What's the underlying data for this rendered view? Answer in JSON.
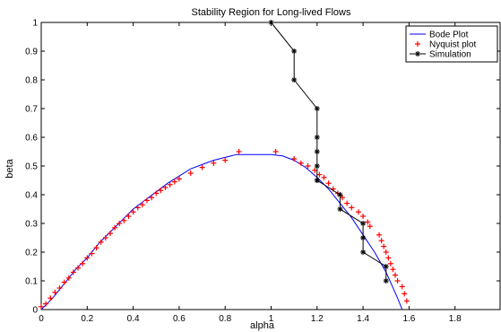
{
  "chart_data": {
    "type": "line",
    "title": "Stability Region for Long-lived Flows",
    "xlabel": "alpha",
    "ylabel": "beta",
    "xlim": [
      0,
      2
    ],
    "ylim": [
      0,
      1
    ],
    "xticks": [
      "0",
      "0.2",
      "0.4",
      "0.6",
      "0.8",
      "1",
      "1.2",
      "1.4",
      "1.6",
      "1.8"
    ],
    "yticks": [
      "0",
      "0.1",
      "0.2",
      "0.3",
      "0.4",
      "0.5",
      "0.6",
      "0.7",
      "0.8",
      "0.9",
      "1"
    ],
    "grid": false,
    "legend_position": "top-right",
    "colors": {
      "bode": "#0000ff",
      "nyquist": "#ff0000",
      "simulation": "#000000"
    },
    "series": [
      {
        "name": "Bode Plot",
        "style": "line",
        "x": [
          0,
          0.05,
          0.1,
          0.15,
          0.2,
          0.25,
          0.3,
          0.35,
          0.4,
          0.45,
          0.5,
          0.55,
          0.6,
          0.65,
          0.7,
          0.75,
          0.8,
          0.85,
          0.9,
          0.95,
          1.0,
          1.05,
          1.1,
          1.15,
          1.2,
          1.25,
          1.3,
          1.35,
          1.4,
          1.45,
          1.5,
          1.55,
          1.57
        ],
        "y": [
          0,
          0.04,
          0.09,
          0.14,
          0.18,
          0.23,
          0.27,
          0.31,
          0.35,
          0.38,
          0.41,
          0.44,
          0.465,
          0.49,
          0.505,
          0.52,
          0.53,
          0.54,
          0.54,
          0.54,
          0.54,
          0.535,
          0.52,
          0.495,
          0.46,
          0.42,
          0.37,
          0.32,
          0.26,
          0.2,
          0.13,
          0.04,
          0.0
        ]
      },
      {
        "name": "Nyquist plot",
        "style": "markers",
        "marker": "+",
        "x": [
          0.0,
          0.02,
          0.04,
          0.06,
          0.08,
          0.1,
          0.12,
          0.14,
          0.16,
          0.18,
          0.2,
          0.22,
          0.24,
          0.26,
          0.28,
          0.3,
          0.32,
          0.34,
          0.36,
          0.38,
          0.4,
          0.42,
          0.44,
          0.46,
          0.48,
          0.5,
          0.52,
          0.54,
          0.56,
          0.58,
          0.6,
          0.65,
          0.7,
          0.75,
          0.8,
          0.86,
          1.02,
          1.1,
          1.13,
          1.16,
          1.19,
          1.21,
          1.23,
          1.25,
          1.27,
          1.29,
          1.31,
          1.33,
          1.35,
          1.38,
          1.4,
          1.42,
          1.43,
          1.47,
          1.48,
          1.49,
          1.5,
          1.51,
          1.52,
          1.53,
          1.54,
          1.55,
          1.57,
          1.58,
          1.59
        ],
        "y": [
          0.01,
          0.02,
          0.04,
          0.06,
          0.075,
          0.095,
          0.11,
          0.13,
          0.145,
          0.16,
          0.18,
          0.195,
          0.215,
          0.235,
          0.25,
          0.265,
          0.285,
          0.3,
          0.31,
          0.325,
          0.34,
          0.355,
          0.365,
          0.38,
          0.39,
          0.405,
          0.415,
          0.425,
          0.435,
          0.445,
          0.455,
          0.475,
          0.495,
          0.51,
          0.52,
          0.55,
          0.55,
          0.525,
          0.51,
          0.5,
          0.485,
          0.47,
          0.46,
          0.44,
          0.42,
          0.405,
          0.39,
          0.37,
          0.355,
          0.34,
          0.325,
          0.305,
          0.29,
          0.26,
          0.24,
          0.22,
          0.2,
          0.18,
          0.16,
          0.14,
          0.12,
          0.1,
          0.08,
          0.055,
          0.03
        ]
      },
      {
        "name": "Simulation",
        "style": "line-markers",
        "marker": "*",
        "x": [
          1.0,
          1.1,
          1.1,
          1.2,
          1.2,
          1.2,
          1.2,
          1.2,
          1.2,
          1.3,
          1.3,
          1.4,
          1.4,
          1.4,
          1.5,
          1.5
        ],
        "y": [
          1.0,
          0.9,
          0.8,
          0.7,
          0.6,
          0.55,
          0.5,
          0.45,
          0.45,
          0.4,
          0.35,
          0.3,
          0.25,
          0.2,
          0.15,
          0.1
        ]
      }
    ]
  }
}
